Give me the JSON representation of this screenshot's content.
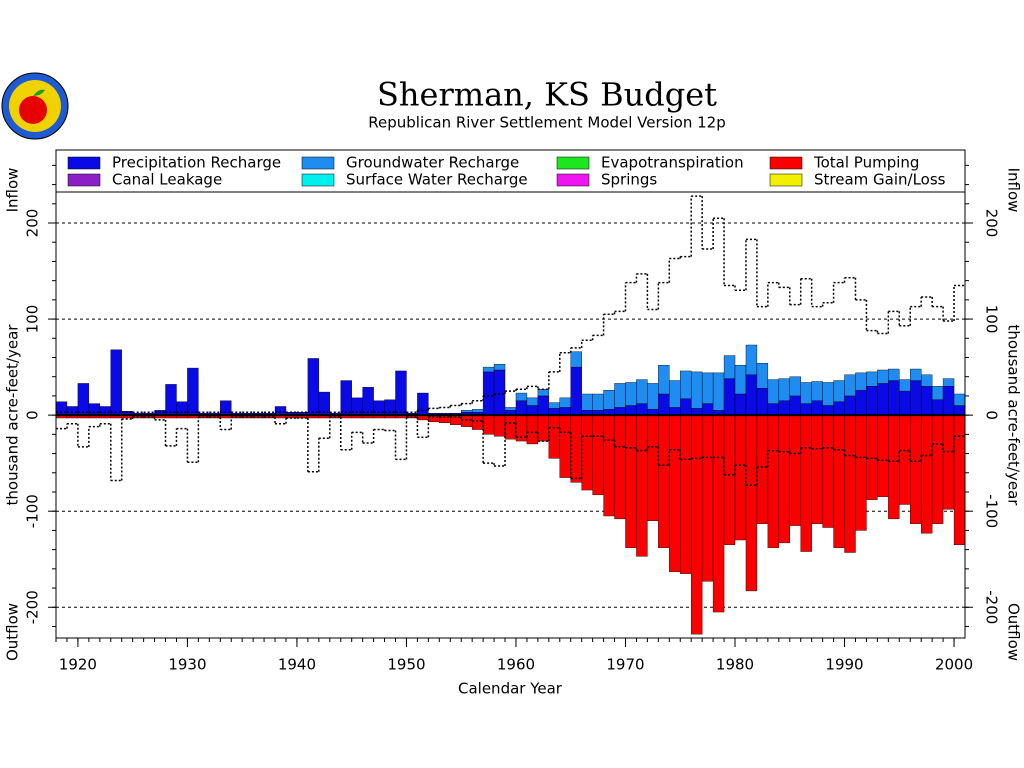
{
  "chart_data": {
    "type": "bar",
    "stacked": true,
    "title": "Sherman, KS Budget",
    "subtitle": "Republican River Settlement Model Version 12p",
    "xlabel": "Calendar Year",
    "ylabel": "thousand acre-feet/year",
    "ylabel_top": "Inflow",
    "ylabel_bottom": "Outflow",
    "xlim": [
      1918,
      2001
    ],
    "xticks": [
      1920,
      1930,
      1940,
      1950,
      1960,
      1970,
      1980,
      1990,
      2000
    ],
    "ylim": [
      -232,
      276
    ],
    "yticks": [
      -200,
      -100,
      0,
      100,
      200
    ],
    "grid": true,
    "x": [
      1918,
      1919,
      1920,
      1921,
      1922,
      1923,
      1924,
      1925,
      1926,
      1927,
      1928,
      1929,
      1930,
      1931,
      1932,
      1933,
      1934,
      1935,
      1936,
      1937,
      1938,
      1939,
      1940,
      1941,
      1942,
      1943,
      1944,
      1945,
      1946,
      1947,
      1948,
      1949,
      1950,
      1951,
      1952,
      1953,
      1954,
      1955,
      1956,
      1957,
      1958,
      1959,
      1960,
      1961,
      1962,
      1963,
      1964,
      1965,
      1966,
      1967,
      1968,
      1969,
      1970,
      1971,
      1972,
      1973,
      1974,
      1975,
      1976,
      1977,
      1978,
      1979,
      1980,
      1981,
      1982,
      1983,
      1984,
      1985,
      1986,
      1987,
      1988,
      1989,
      1990,
      1991,
      1992,
      1993,
      1994,
      1995,
      1996,
      1997,
      1998,
      1999,
      2000
    ],
    "series": [
      {
        "name": "Precipitation Recharge",
        "color": "#0a0ae6",
        "values": [
          14,
          9,
          33,
          12,
          9,
          68,
          4,
          2,
          2,
          5,
          32,
          14,
          49,
          2,
          2,
          15,
          2,
          2,
          2,
          2,
          9,
          3,
          3,
          59,
          24,
          2,
          36,
          18,
          29,
          15,
          16,
          46,
          2,
          23,
          2,
          2,
          2,
          3,
          3,
          45,
          47,
          5,
          15,
          10,
          20,
          7,
          8,
          50,
          5,
          5,
          6,
          8,
          10,
          12,
          6,
          22,
          8,
          17,
          7,
          12,
          5,
          38,
          22,
          42,
          28,
          12,
          15,
          20,
          12,
          15,
          10,
          14,
          20,
          26,
          30,
          33,
          36,
          25,
          36,
          30,
          16,
          30,
          10
        ]
      },
      {
        "name": "Canal Leakage",
        "color": "#8c1ec8",
        "values": [
          0,
          0,
          0,
          0,
          0,
          0,
          0,
          0,
          0,
          0,
          0,
          0,
          0,
          0,
          0,
          0,
          0,
          0,
          0,
          0,
          0,
          0,
          0,
          0,
          0,
          0,
          0,
          0,
          0,
          0,
          0,
          0,
          0,
          0,
          0,
          0,
          0,
          0,
          0,
          0,
          0,
          0,
          0,
          0,
          0,
          0,
          0,
          0,
          0,
          0,
          0,
          0,
          0,
          0,
          0,
          0,
          0,
          0,
          0,
          0,
          0,
          0,
          0,
          0,
          0,
          0,
          0,
          0,
          0,
          0,
          0,
          0,
          0,
          0,
          0,
          0,
          0,
          0,
          0,
          0,
          0,
          0,
          0
        ]
      },
      {
        "name": "Groundwater Recharge",
        "color": "#1e8cf0",
        "values": [
          0,
          0,
          0,
          0,
          0,
          0,
          0,
          0,
          0,
          0,
          0,
          0,
          0,
          0,
          0,
          0,
          0,
          0,
          0,
          0,
          0,
          0,
          0,
          0,
          0,
          0,
          0,
          0,
          0,
          0,
          0,
          0,
          0,
          0,
          0,
          0,
          0,
          2,
          3,
          5,
          6,
          3,
          8,
          8,
          7,
          6,
          10,
          16,
          17,
          17,
          20,
          25,
          24,
          25,
          27,
          30,
          28,
          29,
          38,
          32,
          39,
          24,
          30,
          31,
          26,
          25,
          23,
          20,
          22,
          20,
          24,
          22,
          22,
          18,
          15,
          14,
          12,
          12,
          12,
          12,
          14,
          8,
          12
        ]
      },
      {
        "name": "Surface Water Recharge",
        "color": "#00f0f0",
        "values": [
          0,
          0,
          0,
          0,
          0,
          0,
          0,
          0,
          0,
          0,
          0,
          0,
          0,
          0,
          0,
          0,
          0,
          0,
          0,
          0,
          0,
          0,
          0,
          0,
          0,
          0,
          0,
          0,
          0,
          0,
          0,
          0,
          0,
          0,
          0,
          0,
          0,
          0,
          0,
          0,
          0,
          0,
          0,
          0,
          0,
          0,
          0,
          0,
          0,
          0,
          0,
          0,
          0,
          0,
          0,
          0,
          0,
          0,
          0,
          0,
          0,
          0,
          0,
          0,
          0,
          0,
          0,
          0,
          0,
          0,
          0,
          0,
          0,
          0,
          0,
          0,
          0,
          0,
          0,
          0,
          0,
          0,
          0
        ]
      },
      {
        "name": "Evapotranspiration",
        "color": "#1ee61e",
        "values": [
          0,
          0,
          0,
          0,
          0,
          0,
          0,
          0,
          0,
          0,
          0,
          0,
          0,
          0,
          0,
          0,
          0,
          0,
          0,
          0,
          0,
          0,
          0,
          0,
          0,
          0,
          0,
          0,
          0,
          0,
          0,
          0,
          0,
          0,
          0,
          0,
          0,
          0,
          0,
          0,
          0,
          0,
          0,
          0,
          0,
          0,
          0,
          0,
          0,
          0,
          0,
          0,
          0,
          0,
          0,
          0,
          0,
          0,
          0,
          0,
          0,
          0,
          0,
          0,
          0,
          0,
          0,
          0,
          0,
          0,
          0,
          0,
          0,
          0,
          0,
          0,
          0,
          0,
          0,
          0,
          0,
          0,
          0
        ]
      },
      {
        "name": "Springs",
        "color": "#f014f0",
        "values": [
          0,
          0,
          0,
          0,
          0,
          0,
          0,
          0,
          0,
          0,
          0,
          0,
          0,
          0,
          0,
          0,
          0,
          0,
          0,
          0,
          0,
          0,
          0,
          0,
          0,
          0,
          0,
          0,
          0,
          0,
          0,
          0,
          0,
          0,
          0,
          0,
          0,
          0,
          0,
          0,
          0,
          0,
          0,
          0,
          0,
          0,
          0,
          0,
          0,
          0,
          0,
          0,
          0,
          0,
          0,
          0,
          0,
          0,
          0,
          0,
          0,
          0,
          0,
          0,
          0,
          0,
          0,
          0,
          0,
          0,
          0,
          0,
          0,
          0,
          0,
          0,
          0,
          0,
          0,
          0,
          0,
          0,
          0
        ]
      },
      {
        "name": "Total Pumping",
        "color": "#fa0000",
        "values": [
          -3,
          -3,
          -3,
          -3,
          -3,
          -3,
          -3,
          -3,
          -3,
          -3,
          -3,
          -3,
          -3,
          -3,
          -3,
          -3,
          -3,
          -3,
          -3,
          -3,
          -3,
          -3,
          -3,
          -3,
          -3,
          -3,
          -3,
          -3,
          -3,
          -3,
          -3,
          -3,
          -3,
          -5,
          -7,
          -8,
          -10,
          -12,
          -15,
          -20,
          -22,
          -25,
          -27,
          -30,
          -27,
          -45,
          -65,
          -70,
          -78,
          -83,
          -105,
          -108,
          -138,
          -147,
          -110,
          -138,
          -163,
          -165,
          -228,
          -173,
          -205,
          -135,
          -130,
          -183,
          -113,
          -138,
          -133,
          -115,
          -142,
          -113,
          -117,
          -138,
          -143,
          -120,
          -88,
          -85,
          -108,
          -93,
          -113,
          -123,
          -113,
          -98,
          -135
        ]
      },
      {
        "name": "Stream Gain/Loss",
        "color": "#f0f000",
        "values": [
          0,
          0,
          0,
          0,
          0,
          0,
          0,
          0,
          0,
          0,
          0,
          0,
          0,
          0,
          0,
          0,
          0,
          0,
          0,
          0,
          0,
          0,
          0,
          0,
          0,
          0,
          0,
          0,
          0,
          0,
          0,
          0,
          0,
          0,
          0,
          0,
          0,
          0,
          0,
          0,
          0,
          0,
          0,
          0,
          0,
          0,
          0,
          0,
          0,
          0,
          0,
          0,
          0,
          0,
          0,
          0,
          0,
          0,
          0,
          0,
          0,
          0,
          0,
          0,
          0,
          0,
          0,
          0,
          0,
          0,
          0,
          0,
          0,
          0,
          0,
          0,
          0,
          0,
          0,
          0,
          0,
          0,
          0
        ]
      }
    ],
    "outline_series": [
      {
        "color": "#000000",
        "values": [
          3,
          3,
          3,
          3,
          3,
          3,
          3,
          3,
          3,
          3,
          3,
          3,
          3,
          3,
          3,
          3,
          3,
          3,
          3,
          3,
          3,
          3,
          3,
          3,
          3,
          3,
          3,
          3,
          3,
          3,
          3,
          3,
          3,
          5,
          7,
          8,
          10,
          12,
          15,
          20,
          22,
          25,
          27,
          30,
          27,
          45,
          65,
          70,
          78,
          83,
          105,
          108,
          138,
          147,
          110,
          138,
          163,
          165,
          228,
          173,
          205,
          135,
          130,
          183,
          113,
          138,
          133,
          115,
          142,
          113,
          117,
          138,
          143,
          120,
          88,
          85,
          108,
          93,
          113,
          123,
          113,
          98,
          135
        ]
      },
      {
        "color": "#000000",
        "values": [
          -14,
          -9,
          -33,
          -12,
          -9,
          -68,
          -4,
          -2,
          -2,
          -5,
          -32,
          -14,
          -49,
          -2,
          -2,
          -15,
          -2,
          -2,
          -2,
          -2,
          -9,
          -3,
          -3,
          -59,
          -24,
          -2,
          -36,
          -18,
          -29,
          -15,
          -16,
          -46,
          -2,
          -23,
          -2,
          -2,
          -2,
          -5,
          -6,
          -50,
          -53,
          -8,
          -23,
          -18,
          -27,
          -13,
          -18,
          -66,
          -22,
          -22,
          -26,
          -33,
          -34,
          -37,
          -33,
          -52,
          -36,
          -46,
          -45,
          -44,
          -44,
          -62,
          -52,
          -73,
          -54,
          -37,
          -38,
          -40,
          -34,
          -35,
          -34,
          -36,
          -42,
          -44,
          -45,
          -47,
          -48,
          -37,
          -48,
          -42,
          -30,
          -38,
          -22
        ]
      }
    ]
  }
}
